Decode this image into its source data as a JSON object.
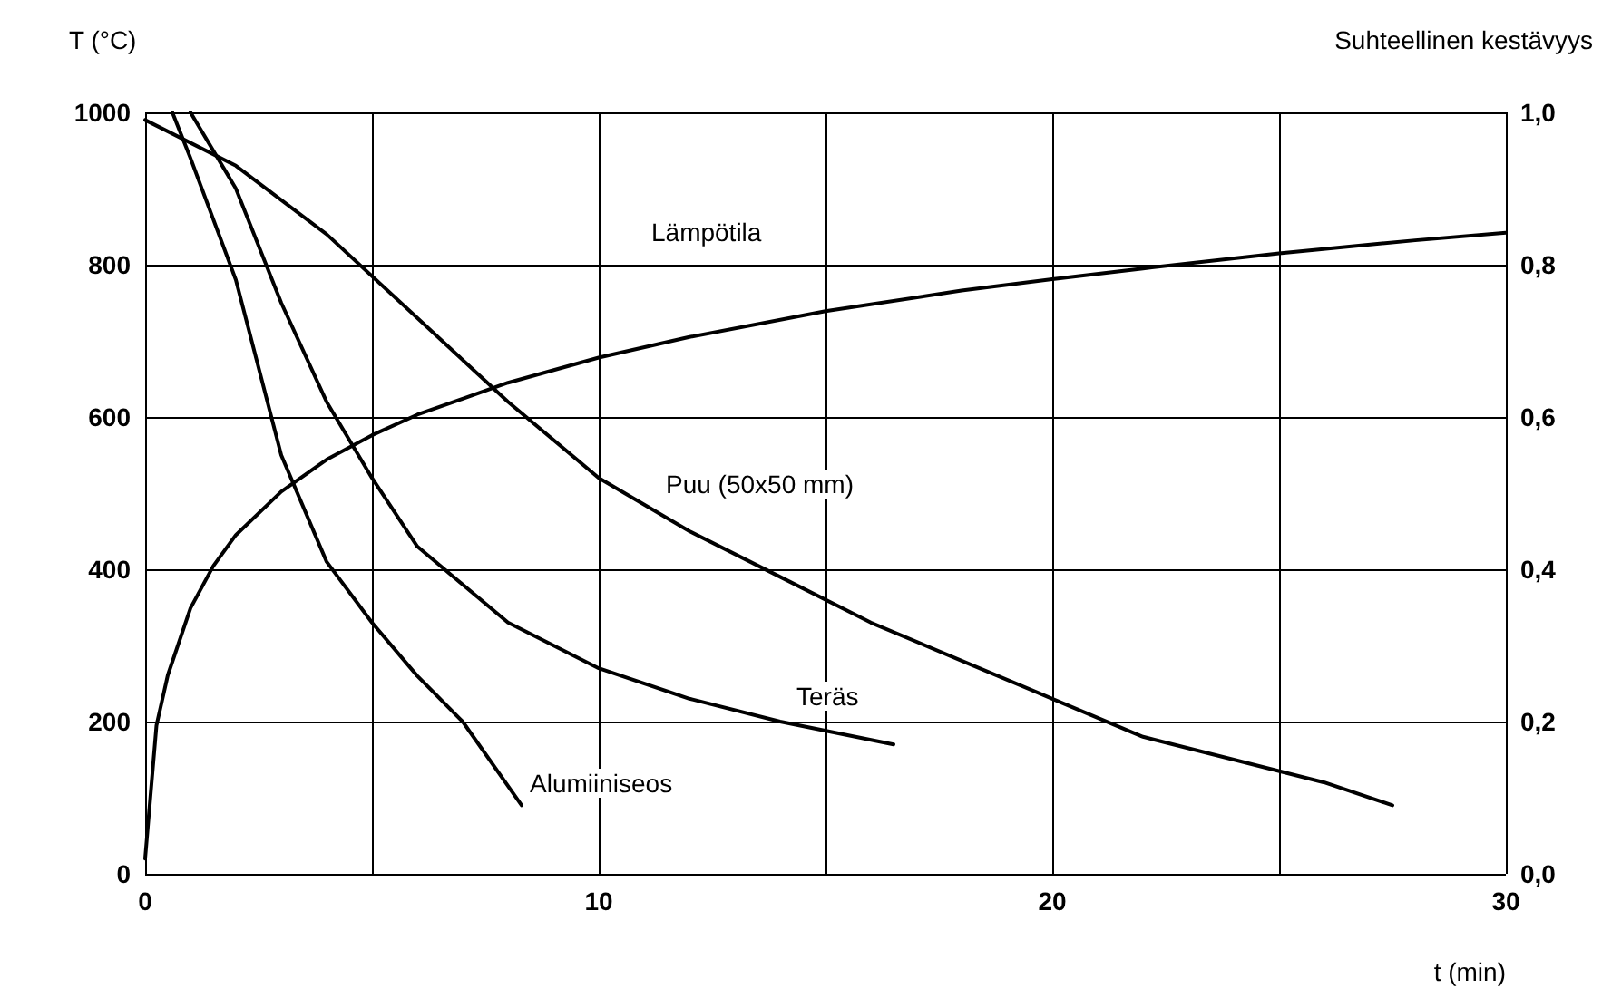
{
  "chart_data": {
    "type": "line",
    "xlabel": "t (min)",
    "ylabel": "T (°C)",
    "y2label": "Suhteellinen kestävyys",
    "xlim": [
      0,
      30
    ],
    "xticks": [
      0,
      10,
      20,
      30
    ],
    "ylim": [
      0,
      1000
    ],
    "yticks": [
      0,
      200,
      400,
      600,
      800,
      1000
    ],
    "y2lim": [
      0,
      1
    ],
    "y2ticks": [
      {
        "value": 0,
        "label": "0,0"
      },
      {
        "value": 0.2,
        "label": "0,2"
      },
      {
        "value": 0.4,
        "label": "0,4"
      },
      {
        "value": 0.6,
        "label": "0,6"
      },
      {
        "value": 0.8,
        "label": "0,8"
      },
      {
        "value": 1,
        "label": "1,0"
      }
    ],
    "grid": true,
    "marker": "none",
    "line_style": "solid",
    "series": [
      {
        "name": "Lämpötila",
        "color": "#000000",
        "x": [
          0,
          0.25,
          0.5,
          1,
          1.5,
          2,
          3,
          4,
          5,
          6,
          8,
          10,
          12,
          15,
          18,
          20,
          22,
          25,
          28,
          30
        ],
        "values": [
          20,
          195,
          261,
          349,
          404,
          445,
          502,
          544,
          576,
          603,
          645,
          678,
          705,
          739,
          766,
          781,
          795,
          815,
          832,
          842
        ]
      },
      {
        "name": "Puu (50x50 mm)",
        "color": "#000000",
        "axis": "y2",
        "x": [
          0,
          2,
          4,
          6,
          8,
          10,
          12,
          14,
          16,
          18,
          20,
          22,
          24,
          26,
          27.5
        ],
        "values": [
          0.99,
          0.93,
          0.84,
          0.73,
          0.62,
          0.52,
          0.45,
          0.39,
          0.33,
          0.28,
          0.23,
          0.18,
          0.15,
          0.12,
          0.09
        ]
      },
      {
        "name": "Teräs",
        "color": "#000000",
        "axis": "y2",
        "x": [
          1,
          2,
          3,
          4,
          5,
          6,
          8,
          10,
          12,
          14,
          16.5
        ],
        "values": [
          1,
          0.9,
          0.75,
          0.62,
          0.52,
          0.43,
          0.33,
          0.27,
          0.23,
          0.2,
          0.17
        ]
      },
      {
        "name": "Alumiiniseos",
        "color": "#000000",
        "axis": "y2",
        "x": [
          0.6,
          1,
          2,
          3,
          4,
          5,
          6,
          7,
          8.3
        ],
        "values": [
          1,
          0.94,
          0.78,
          0.55,
          0.41,
          0.33,
          0.26,
          0.2,
          0.09
        ]
      }
    ]
  }
}
